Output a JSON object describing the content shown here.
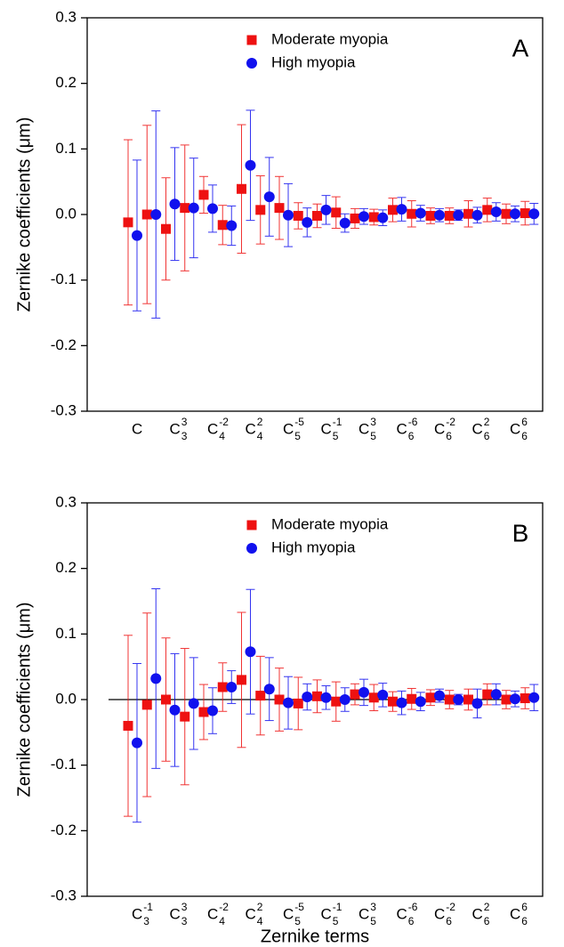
{
  "chart_data": [
    {
      "type": "scatter",
      "label": "A",
      "y_label": "Zernike coefficients (μm)",
      "legend": "top",
      "categories": [
        null,
        {
          "base": "C"
        },
        null,
        {
          "base": "C",
          "sub": "3",
          "sup": "3"
        },
        null,
        {
          "base": "C",
          "sub": "4",
          "sup": "-2"
        },
        null,
        {
          "base": "C",
          "sub": "4",
          "sup": "2"
        },
        null,
        {
          "base": "C",
          "sub": "5",
          "sup": "-5"
        },
        null,
        {
          "base": "C",
          "sub": "5",
          "sup": "-1"
        },
        null,
        {
          "base": "C",
          "sub": "5",
          "sup": "3"
        },
        null,
        {
          "base": "C",
          "sub": "6",
          "sup": "-6"
        },
        null,
        {
          "base": "C",
          "sub": "6",
          "sup": "-2"
        },
        null,
        {
          "base": "C",
          "sub": "6",
          "sup": "2"
        },
        null,
        {
          "base": "C",
          "sub": "6",
          "sup": "6"
        }
      ],
      "series": [
        {
          "name": "Moderate myopia",
          "color": "#ee1111",
          "marker": "square",
          "values": [
            -0.012,
            0.0,
            -0.022,
            0.01,
            0.03,
            -0.016,
            0.039,
            0.007,
            0.01,
            -0.002,
            -0.002,
            0.003,
            -0.006,
            -0.004,
            0.007,
            0.001,
            -0.002,
            -0.002,
            0.001,
            0.007,
            0.001,
            0.002
          ],
          "errors": [
            0.126,
            0.136,
            0.078,
            0.096,
            0.028,
            0.03,
            0.098,
            0.052,
            0.048,
            0.02,
            0.018,
            0.024,
            0.015,
            0.012,
            0.018,
            0.02,
            0.012,
            0.012,
            0.02,
            0.018,
            0.015,
            0.018
          ]
        },
        {
          "name": "High myopia",
          "color": "#1111ee",
          "marker": "circle",
          "values": [
            -0.032,
            0.0,
            0.016,
            0.01,
            0.009,
            -0.017,
            0.075,
            0.027,
            -0.001,
            -0.012,
            0.007,
            -0.013,
            -0.003,
            -0.005,
            0.008,
            0.002,
            -0.001,
            -0.001,
            -0.001,
            0.004,
            0.001,
            0.001
          ],
          "errors": [
            0.115,
            0.158,
            0.086,
            0.076,
            0.036,
            0.03,
            0.084,
            0.06,
            0.048,
            0.022,
            0.022,
            0.014,
            0.012,
            0.012,
            0.018,
            0.012,
            0.01,
            0.008,
            0.012,
            0.014,
            0.012,
            0.016
          ]
        }
      ],
      "ylim": [
        -0.3,
        0.3
      ],
      "yticks": [
        -0.3,
        -0.2,
        -0.1,
        {
          "value": 0,
          "label": "0.0"
        },
        0.1,
        0.2,
        0.3
      ],
      "zero_line": false
    },
    {
      "type": "scatter",
      "label": "B",
      "y_label": "Zernike coefficients (μm)",
      "x_label": "Zernike terms",
      "legend": "top",
      "categories": [
        null,
        {
          "base": "C",
          "sub": "3",
          "sup": "-1"
        },
        null,
        {
          "base": "C",
          "sub": "3",
          "sup": "3"
        },
        null,
        {
          "base": "C",
          "sub": "4",
          "sup": "-2"
        },
        null,
        {
          "base": "C",
          "sub": "4",
          "sup": "2"
        },
        null,
        {
          "base": "C",
          "sub": "5",
          "sup": "-5"
        },
        null,
        {
          "base": "C",
          "sub": "5",
          "sup": "-1"
        },
        null,
        {
          "base": "C",
          "sub": "5",
          "sup": "3"
        },
        null,
        {
          "base": "C",
          "sub": "6",
          "sup": "-6"
        },
        null,
        {
          "base": "C",
          "sub": "6",
          "sup": "-2"
        },
        null,
        {
          "base": "C",
          "sub": "6",
          "sup": "2"
        },
        null,
        {
          "base": "C",
          "sub": "6",
          "sup": "6"
        }
      ],
      "series": [
        {
          "name": "Moderate myopia",
          "color": "#ee1111",
          "marker": "square",
          "values": [
            -0.04,
            -0.008,
            0.0,
            -0.026,
            -0.019,
            0.019,
            0.03,
            0.006,
            0.0,
            -0.006,
            0.005,
            -0.003,
            0.008,
            0.003,
            -0.003,
            0.001,
            0.003,
            0.0,
            0.0,
            0.008,
            0.0,
            0.002
          ],
          "errors": [
            0.138,
            0.14,
            0.094,
            0.104,
            0.042,
            0.037,
            0.103,
            0.06,
            0.048,
            0.04,
            0.025,
            0.03,
            0.016,
            0.02,
            0.015,
            0.016,
            0.012,
            0.014,
            0.016,
            0.016,
            0.014,
            0.016
          ]
        },
        {
          "name": "High myopia",
          "color": "#1111ee",
          "marker": "circle",
          "values": [
            -0.066,
            0.032,
            -0.016,
            -0.006,
            -0.017,
            0.019,
            0.073,
            0.016,
            -0.005,
            0.004,
            0.003,
            0.0,
            0.011,
            0.007,
            -0.005,
            -0.003,
            0.006,
            0.0,
            -0.006,
            0.008,
            0.001,
            0.003
          ],
          "errors": [
            0.121,
            0.137,
            0.086,
            0.07,
            0.035,
            0.025,
            0.095,
            0.048,
            0.04,
            0.02,
            0.018,
            0.018,
            0.02,
            0.018,
            0.018,
            0.014,
            0.01,
            0.008,
            0.022,
            0.016,
            0.012,
            0.02
          ]
        }
      ],
      "ylim": [
        -0.3,
        0.3
      ],
      "yticks": [
        -0.3,
        -0.2,
        -0.1,
        {
          "value": 0,
          "label": "0.0"
        },
        0.1,
        0.2,
        0.3
      ],
      "zero_line": true
    }
  ]
}
